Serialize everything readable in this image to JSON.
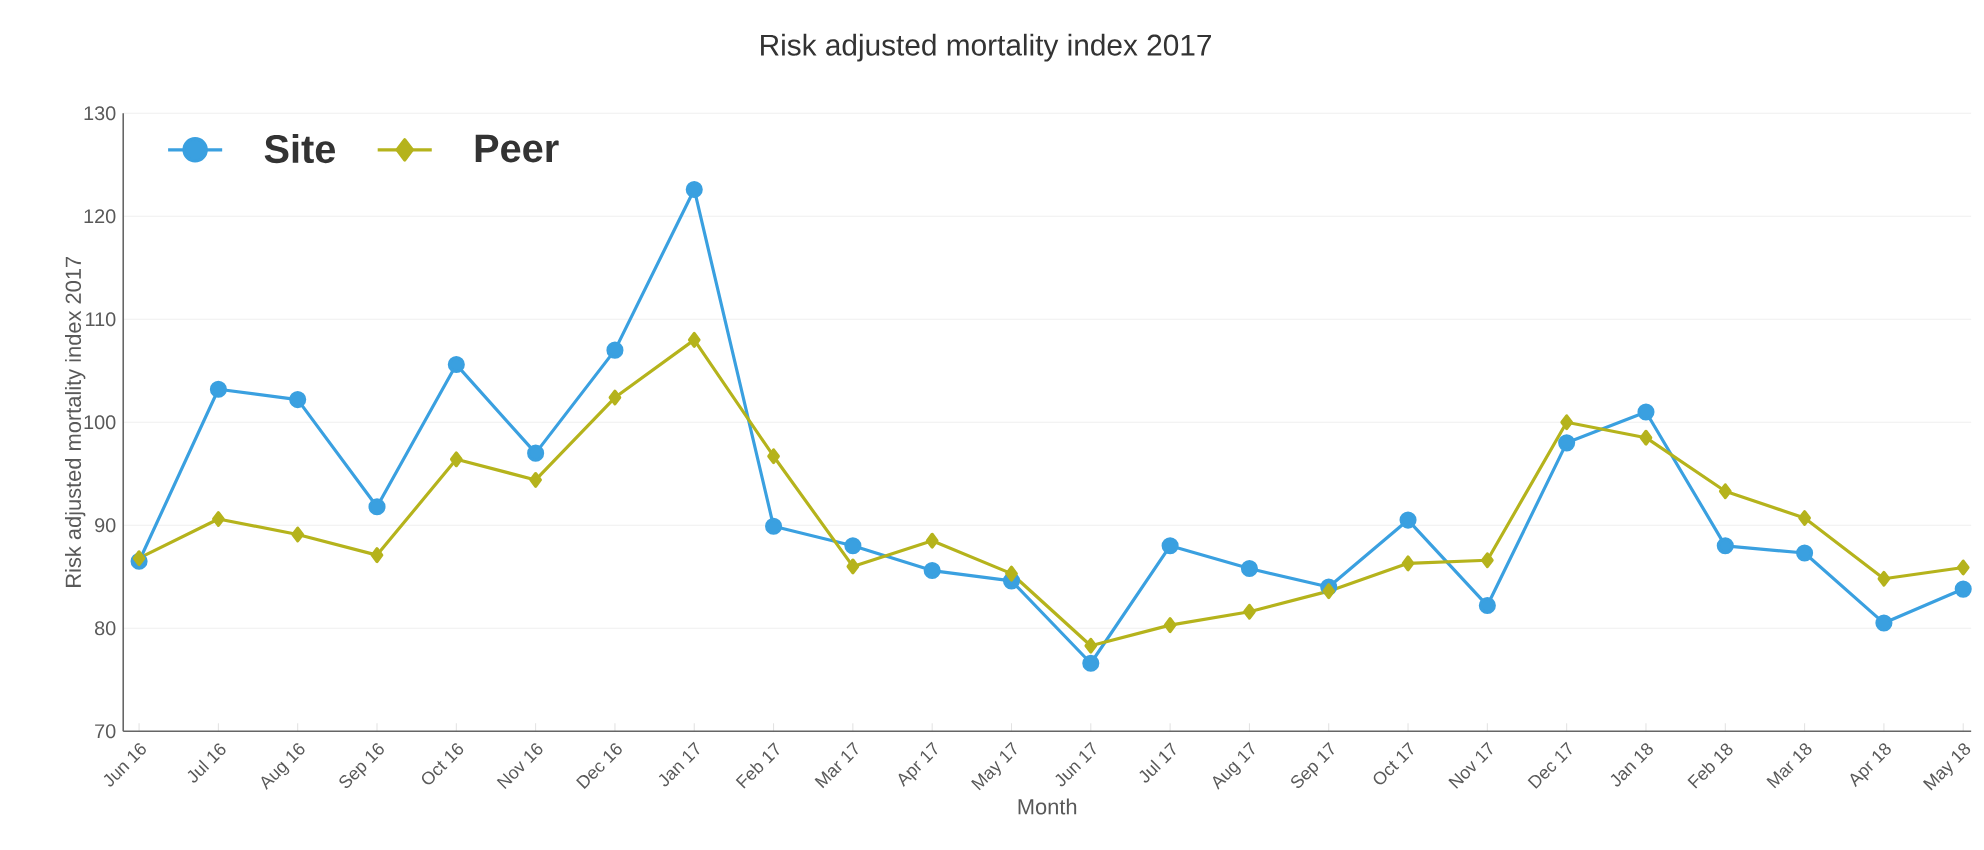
{
  "chart_data": {
    "type": "line",
    "title": "Risk adjusted mortality index 2017",
    "xlabel": "Month",
    "ylabel": "Risk adjusted mortality index 2017",
    "categories": [
      "Jun 16",
      "Jul 16",
      "Aug 16",
      "Sep 16",
      "Oct 16",
      "Nov 16",
      "Dec 16",
      "Jan 17",
      "Feb 17",
      "Mar 17",
      "Apr 17",
      "May 17",
      "Jun 17",
      "Jul 17",
      "Aug 17",
      "Sep 17",
      "Oct 17",
      "Nov 17",
      "Dec 17",
      "Jan 18",
      "Feb 18",
      "Mar 18",
      "Apr 18",
      "May 18"
    ],
    "series": [
      {
        "name": "Site",
        "color": "#3aa0e0",
        "marker": "circle",
        "values": [
          86.5,
          103.2,
          102.2,
          91.8,
          105.6,
          97,
          107,
          122.6,
          89.9,
          88,
          85.6,
          84.6,
          76.6,
          88,
          85.8,
          84,
          90.5,
          82.2,
          98,
          101,
          88,
          87.3,
          80.5,
          83.8
        ]
      },
      {
        "name": "Peer",
        "color": "#b5b31c",
        "marker": "diamond",
        "values": [
          86.8,
          90.6,
          89.1,
          87.1,
          96.4,
          94.4,
          102.4,
          108,
          96.7,
          86,
          88.5,
          85.3,
          78.3,
          80.3,
          81.6,
          83.6,
          86.3,
          86.6,
          100,
          98.5,
          93.3,
          90.7,
          84.8,
          85.9
        ]
      }
    ],
    "ylim": [
      70,
      130
    ],
    "yticks": [
      70,
      80,
      90,
      100,
      110,
      120,
      130
    ],
    "grid": "y",
    "legend": "top left",
    "line_style": "solid"
  }
}
